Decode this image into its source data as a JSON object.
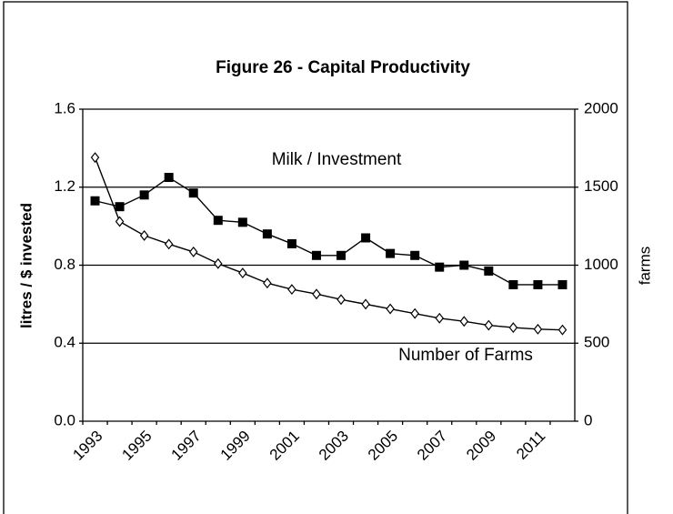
{
  "chart_data": {
    "type": "line",
    "title": "Figure 26 - Capital Productivity",
    "y_label": "litres / $ invested",
    "y2_label": "farms",
    "annotations": [
      "Milk / Investment",
      "Number of Farms"
    ],
    "categories": [
      "1993",
      null,
      "1995",
      null,
      "1997",
      null,
      "1999",
      null,
      "2001",
      null,
      "2003",
      null,
      "2005",
      null,
      "2007",
      null,
      "2009",
      null,
      "2011",
      null
    ],
    "series": [
      {
        "name": "Milk / Investment",
        "color": "#000000",
        "marker": "square",
        "values": [
          1.13,
          1.1,
          1.16,
          1.25,
          1.17,
          1.03,
          1.02,
          0.96,
          0.91,
          0.85,
          0.85,
          0.94,
          0.86,
          0.85,
          0.79,
          0.8,
          0.77,
          0.7,
          0.7,
          0.7
        ]
      },
      {
        "name": "Number of Farms",
        "color": "#000000",
        "marker": "diamond",
        "axis": "y2",
        "values": [
          1690,
          1280,
          1190,
          1135,
          1085,
          1010,
          950,
          885,
          845,
          815,
          780,
          750,
          720,
          690,
          660,
          640,
          615,
          600,
          590,
          585
        ]
      }
    ],
    "ylim": [
      0,
      1.6
    ],
    "yticks": [
      {
        "value": 0,
        "label": "0.0"
      },
      0.4,
      0.8,
      1.2,
      1.6
    ],
    "y2lim": [
      0,
      2000
    ],
    "y2ticks": [
      0,
      500,
      1000,
      1500,
      2000
    ],
    "grid": true
  }
}
